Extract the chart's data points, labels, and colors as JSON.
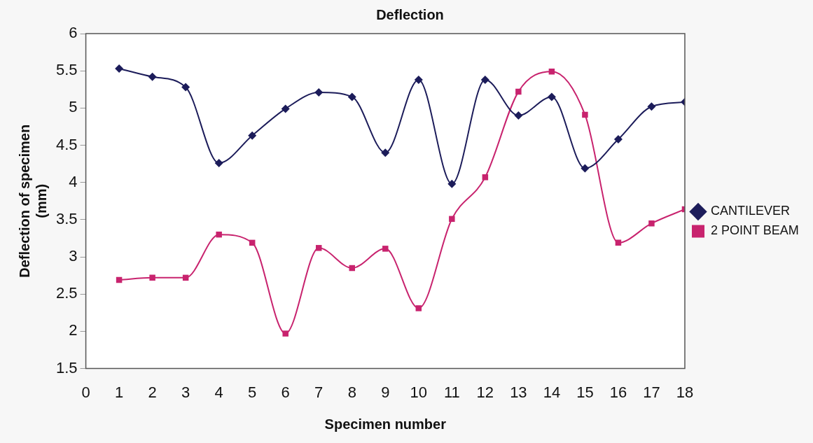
{
  "chart_data": {
    "type": "line",
    "title": "Deflection",
    "xlabel": "Specimen number",
    "ylabel": "Deflection of specimen\n(mm)",
    "x": [
      1,
      2,
      3,
      4,
      5,
      6,
      7,
      8,
      9,
      10,
      11,
      12,
      13,
      14,
      15,
      16,
      17,
      18
    ],
    "xlim": [
      0,
      18
    ],
    "xticks": [
      0,
      1,
      2,
      3,
      4,
      5,
      6,
      7,
      8,
      9,
      10,
      11,
      12,
      13,
      14,
      15,
      16,
      17,
      18
    ],
    "ylim": [
      1.5,
      6
    ],
    "yticks": [
      1.5,
      2,
      2.5,
      3,
      3.5,
      4,
      4.5,
      5,
      5.5,
      6
    ],
    "grid": false,
    "legend": "right",
    "line_style": "solid",
    "series": [
      {
        "name": "CANTILEVER",
        "color": "#1c1c5a",
        "marker": "diamond",
        "values": [
          5.53,
          5.42,
          5.28,
          4.26,
          4.63,
          4.99,
          5.21,
          5.15,
          4.4,
          5.38,
          3.98,
          5.38,
          4.9,
          5.15,
          4.19,
          4.58,
          5.02,
          5.08
        ]
      },
      {
        "name": "2 POINT BEAM",
        "color": "#c8236e",
        "marker": "square",
        "values": [
          2.69,
          2.72,
          2.72,
          3.3,
          3.19,
          1.97,
          3.12,
          2.85,
          3.11,
          2.31,
          3.51,
          4.07,
          5.22,
          5.49,
          4.91,
          3.19,
          3.45,
          3.64
        ]
      }
    ]
  }
}
